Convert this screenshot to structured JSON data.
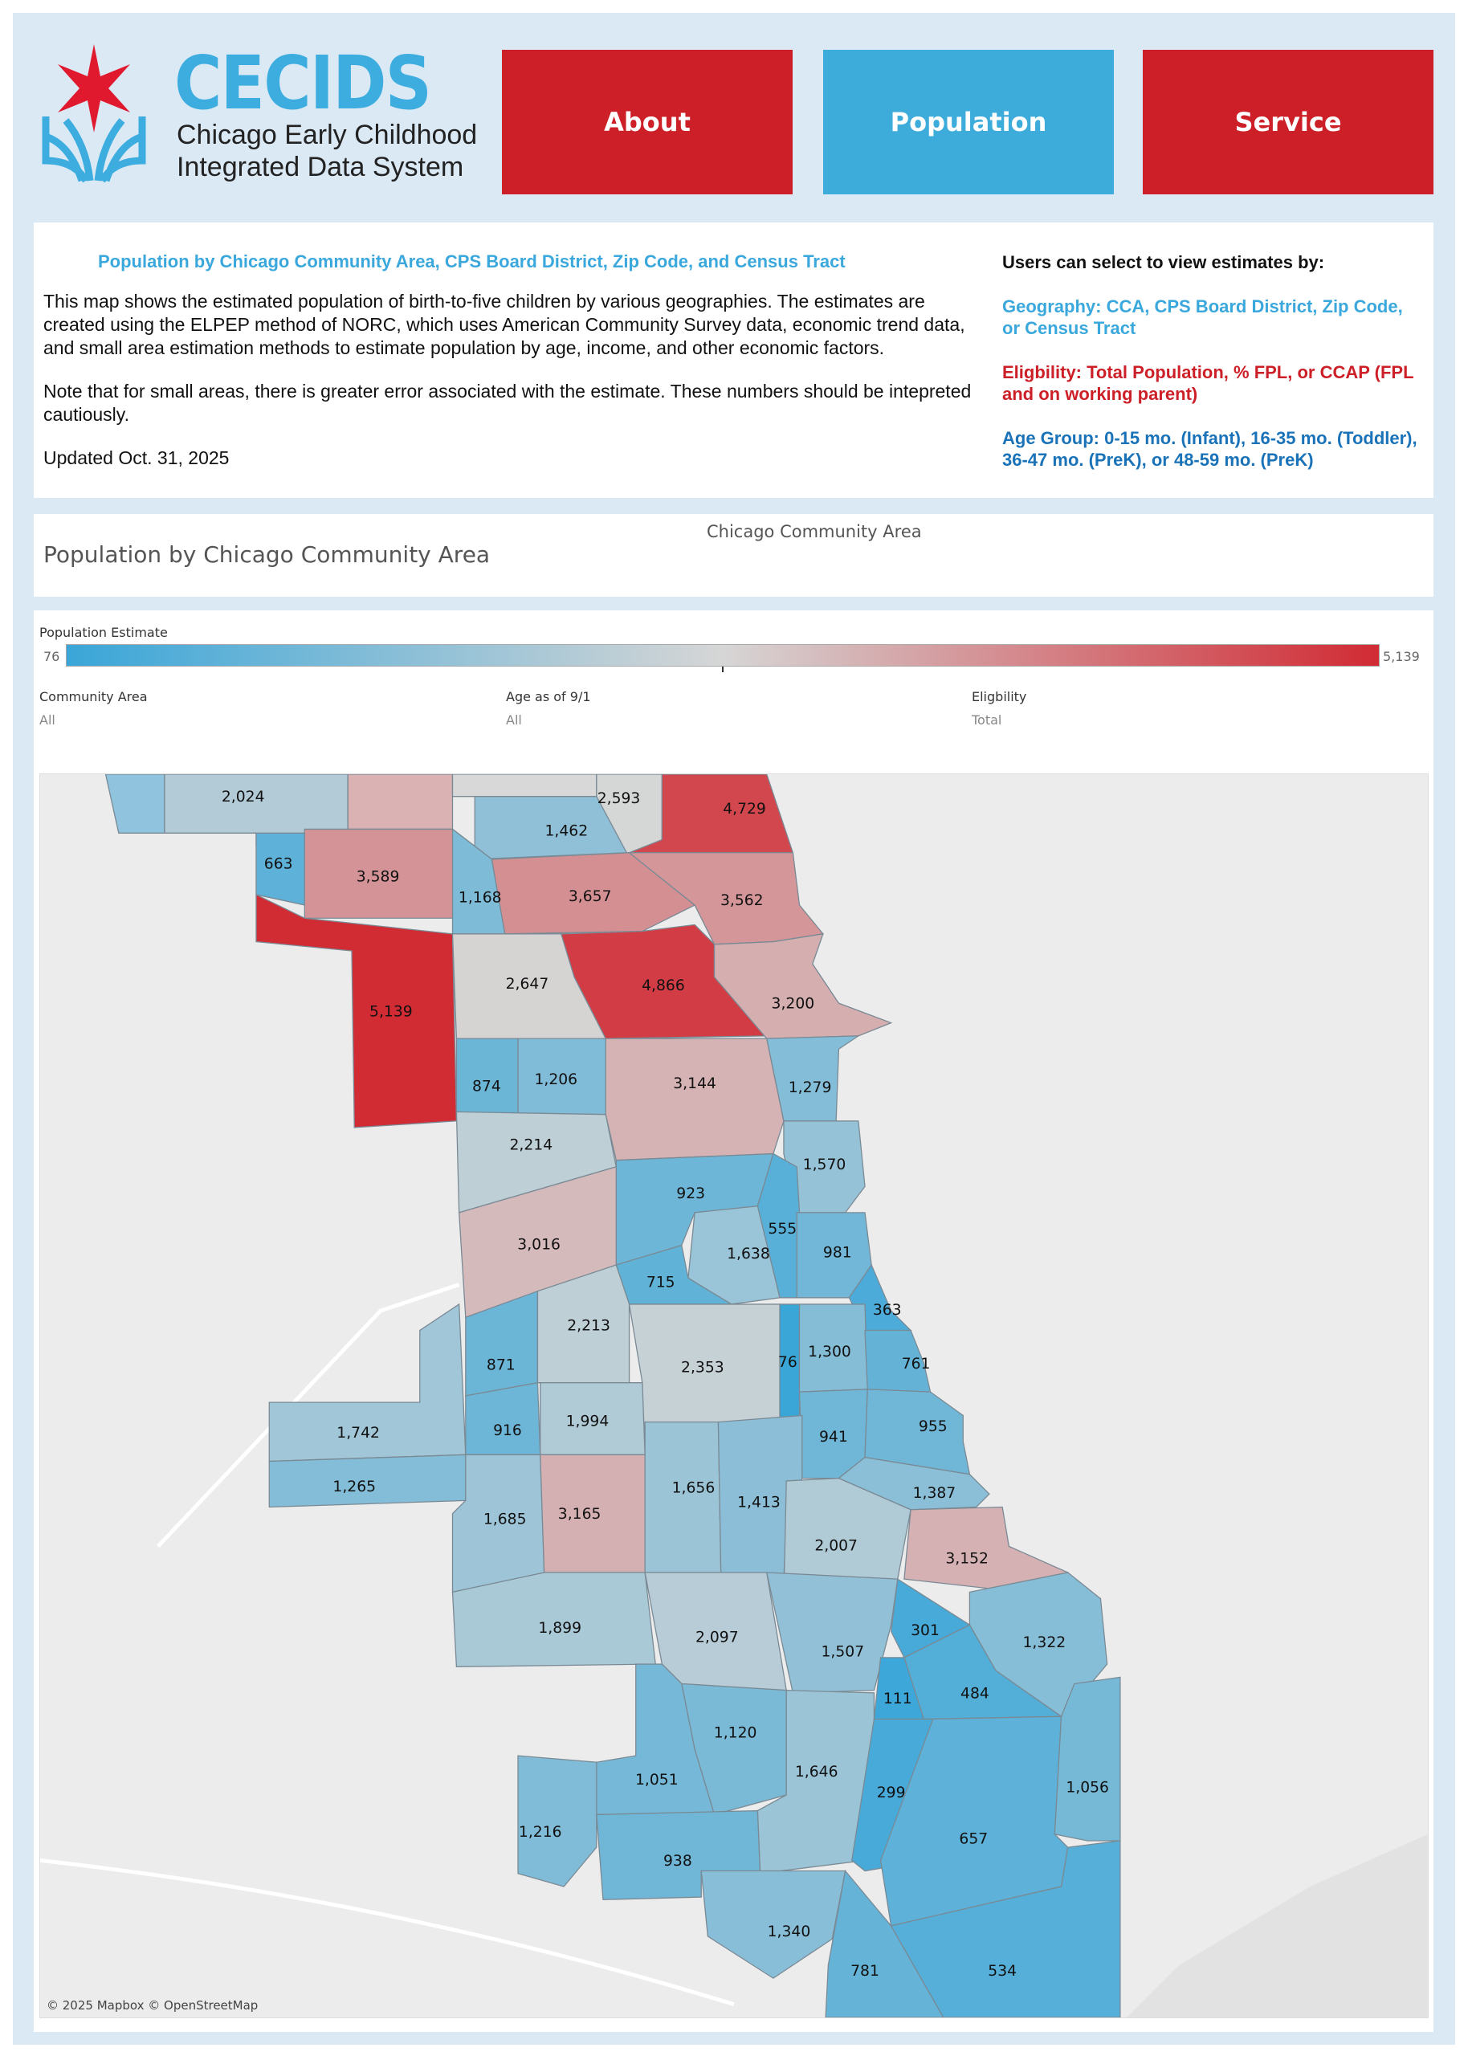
{
  "header": {
    "logo": {
      "brand": "CECIDS",
      "line1": "Chicago Early Childhood",
      "line2": "Integrated Data System"
    },
    "nav": [
      {
        "label": "About",
        "color": "#cc1f27"
      },
      {
        "label": "Population",
        "color": "#3dacdb"
      },
      {
        "label": "Service",
        "color": "#cc1f27"
      }
    ]
  },
  "info": {
    "title": "Population by Chicago Community Area, CPS Board District, Zip Code, and Census Tract",
    "paragraphs": [
      "This map shows the estimated population of birth-to-five children by various geographies. The estimates are created using the ELPEP method of NORC, which uses American Community Survey data, economic trend data, and small area estimation methods to estimate population by age, income, and other economic factors.",
      "Note that for small areas, there is greater error associated with the estimate. These numbers should be intepreted cautiously.",
      "Updated Oct. 31, 2025"
    ],
    "select_heading": "Users can select to view estimates by:",
    "options": [
      {
        "text": "Geography: CCA, CPS Board District, Zip Code, or Census Tract",
        "color": "#3aa8dc"
      },
      {
        "text": "Eligbility: Total Population, % FPL, or CCAP (FPL and on working parent)",
        "color": "#cc1f27"
      },
      {
        "text": "Age Group: 0-15 mo. (Infant), 16-35 mo. (Toddler), 36-47 mo. (PreK), or 48-59 mo. (PreK)",
        "color": "#1a73b8"
      }
    ]
  },
  "view": {
    "selector_label": "Chicago Community Area",
    "title": "Population by Chicago Community Area"
  },
  "legend": {
    "title": "Population Estimate",
    "min": "76",
    "max": "5,139",
    "min_color": "#3aa6d8",
    "mid_color": "#d6d6d6",
    "max_color": "#d12b34"
  },
  "filters": [
    {
      "label": "Community Area",
      "value": "All"
    },
    {
      "label": "Age as of 9/1",
      "value": "All"
    },
    {
      "label": "Eligbility",
      "value": "Total"
    }
  ],
  "map": {
    "attribution": "© 2025 Mapbox © OpenStreetMap",
    "unlabeled_fills": [
      "#8fc3de",
      "#dbb2b4",
      "#d8d8d8"
    ],
    "areas": [
      "2,024",
      "2,593",
      "4,729",
      "1,462",
      "663",
      "3,589",
      "1,168",
      "3,657",
      "3,562",
      "5,139",
      "2,647",
      "4,866",
      "3,200",
      "874",
      "1,206",
      "3,144",
      "1,279",
      "2,214",
      "1,570",
      "923",
      "3,016",
      "555",
      "1,638",
      "715",
      "981",
      "363",
      "871",
      "2,213",
      "2,353",
      "76",
      "1,300",
      "761",
      "1,742",
      "916",
      "1,994",
      "941",
      "955",
      "1,265",
      "1,685",
      "3,165",
      "1,656",
      "1,413",
      "1,387",
      "2,007",
      "3,152",
      "1,899",
      "2,097",
      "1,507",
      "301",
      "1,322",
      "484",
      "111",
      "1,120",
      "1,646",
      "1,051",
      "299",
      "657",
      "1,056",
      "1,216",
      "938",
      "1,340",
      "781",
      "534"
    ]
  }
}
